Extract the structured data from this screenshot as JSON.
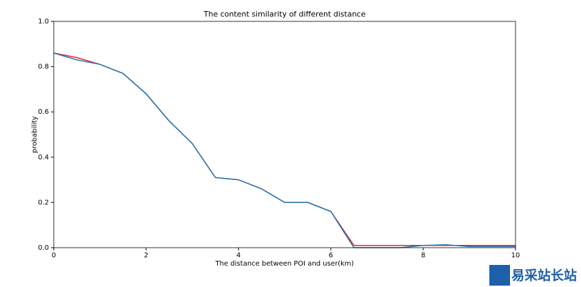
{
  "chart_data": {
    "type": "line",
    "title": "The content similarity of different distance",
    "xlabel": "The distance between POI  and user(km)",
    "ylabel": "probability",
    "x": [
      0,
      0.5,
      1,
      1.5,
      2,
      2.5,
      3,
      3.5,
      4,
      4.5,
      5,
      5.5,
      6,
      6.5,
      7,
      7.5,
      8,
      8.5,
      9,
      9.5,
      10
    ],
    "series": [
      {
        "name": "red",
        "color": "#e8262a",
        "values": [
          0.86,
          0.84,
          0.81,
          0.77,
          0.68,
          0.56,
          0.46,
          0.31,
          0.3,
          0.26,
          0.2,
          0.2,
          0.16,
          0.01,
          0.01,
          0.01,
          0.01,
          0.01,
          0.01,
          0.01,
          0.01
        ]
      },
      {
        "name": "blue",
        "color": "#1f77b4",
        "values": [
          0.86,
          0.83,
          0.81,
          0.77,
          0.68,
          0.56,
          0.46,
          0.31,
          0.3,
          0.26,
          0.2,
          0.2,
          0.16,
          0.0,
          0.0,
          0.0,
          0.01,
          0.013,
          0.005,
          0.005,
          0.005
        ]
      }
    ],
    "xlim": [
      0,
      10
    ],
    "xticks": [
      0,
      2,
      4,
      6,
      8,
      10
    ],
    "ylim": [
      0,
      1
    ],
    "yticks": [
      {
        "value": 0,
        "label": "0.0"
      },
      {
        "value": 0.2,
        "label": "0.2"
      },
      {
        "value": 0.4,
        "label": "0.4"
      },
      {
        "value": 0.6,
        "label": "0.6"
      },
      {
        "value": 0.8,
        "label": "0.8"
      },
      {
        "value": 1,
        "label": "1.0"
      }
    ],
    "grid": false,
    "watermark": "易采站长站"
  }
}
